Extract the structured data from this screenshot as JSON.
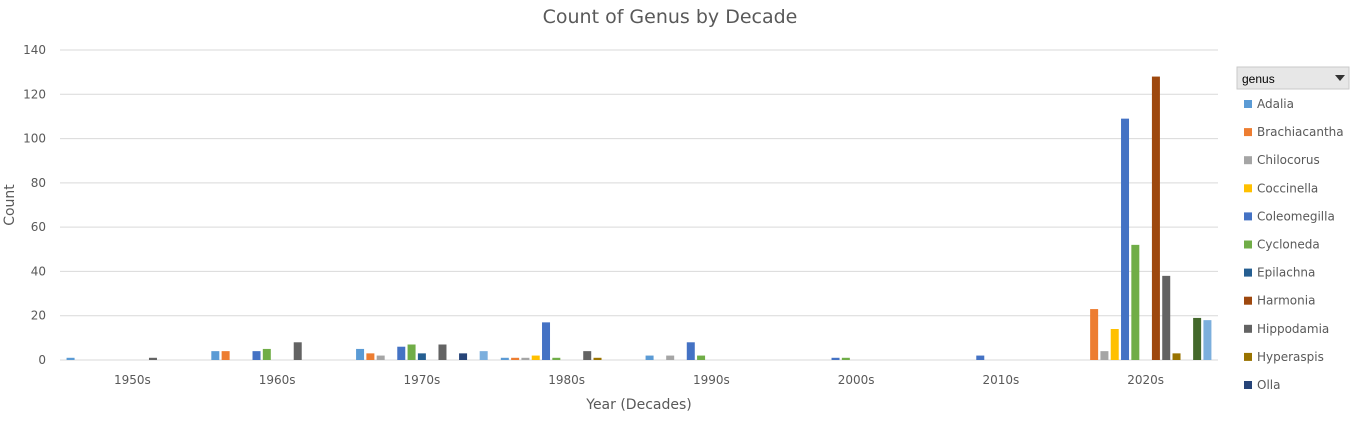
{
  "chart_data": {
    "type": "bar",
    "title": "Count of Genus by Decade",
    "xlabel": "Year (Decades)",
    "ylabel": "Count",
    "ylim": [
      0,
      140
    ],
    "yticks": [
      0,
      20,
      40,
      60,
      80,
      100,
      120,
      140
    ],
    "grid": true,
    "legend_position": "right",
    "legend_header": "genus",
    "categories": [
      "1950s",
      "1960s",
      "1970s",
      "1980s",
      "1990s",
      "2000s",
      "2010s",
      "2020s"
    ],
    "series": [
      {
        "name": "Adalia",
        "color": "#5B9BD5",
        "values": [
          1,
          4,
          5,
          1,
          2,
          0,
          0,
          0
        ]
      },
      {
        "name": "Brachiacantha",
        "color": "#ED7D31",
        "values": [
          0,
          4,
          3,
          1,
          0,
          0,
          0,
          23
        ]
      },
      {
        "name": "Chilocorus",
        "color": "#A5A5A5",
        "values": [
          0,
          0,
          2,
          1,
          2,
          0,
          0,
          4
        ]
      },
      {
        "name": "Coccinella",
        "color": "#FFC000",
        "values": [
          0,
          0,
          0,
          2,
          0,
          0,
          0,
          14
        ]
      },
      {
        "name": "Coleomegilla",
        "color": "#4472C4",
        "values": [
          0,
          4,
          6,
          17,
          8,
          1,
          2,
          109
        ]
      },
      {
        "name": "Cycloneda",
        "color": "#70AD47",
        "values": [
          0,
          5,
          7,
          1,
          2,
          1,
          0,
          52
        ]
      },
      {
        "name": "Epilachna",
        "color": "#255E91",
        "values": [
          0,
          0,
          3,
          0,
          0,
          0,
          0,
          0
        ]
      },
      {
        "name": "Harmonia",
        "color": "#9E480E",
        "values": [
          0,
          0,
          0,
          0,
          0,
          0,
          0,
          128
        ]
      },
      {
        "name": "Hippodamia",
        "color": "#636363",
        "values": [
          1,
          8,
          7,
          4,
          0,
          0,
          0,
          38
        ]
      },
      {
        "name": "Hyperaspis",
        "color": "#997300",
        "values": [
          0,
          0,
          0,
          1,
          0,
          0,
          0,
          3
        ]
      },
      {
        "name": "Olla",
        "color": "#264478",
        "values": [
          0,
          0,
          3,
          0,
          0,
          0,
          0,
          0
        ]
      },
      {
        "name": "",
        "color": "#43682B",
        "values": [
          0,
          0,
          0,
          0,
          0,
          0,
          0,
          19
        ]
      },
      {
        "name": "",
        "color": "#7CAFDD",
        "values": [
          0,
          0,
          4,
          0,
          0,
          0,
          0,
          18
        ]
      }
    ]
  },
  "colors": {
    "gridline": "#D9D9D9",
    "axis_text": "#595959",
    "legend_header_bg": "#E7E7E7"
  },
  "icons": {
    "legend_dropdown": "caret-down-icon"
  }
}
